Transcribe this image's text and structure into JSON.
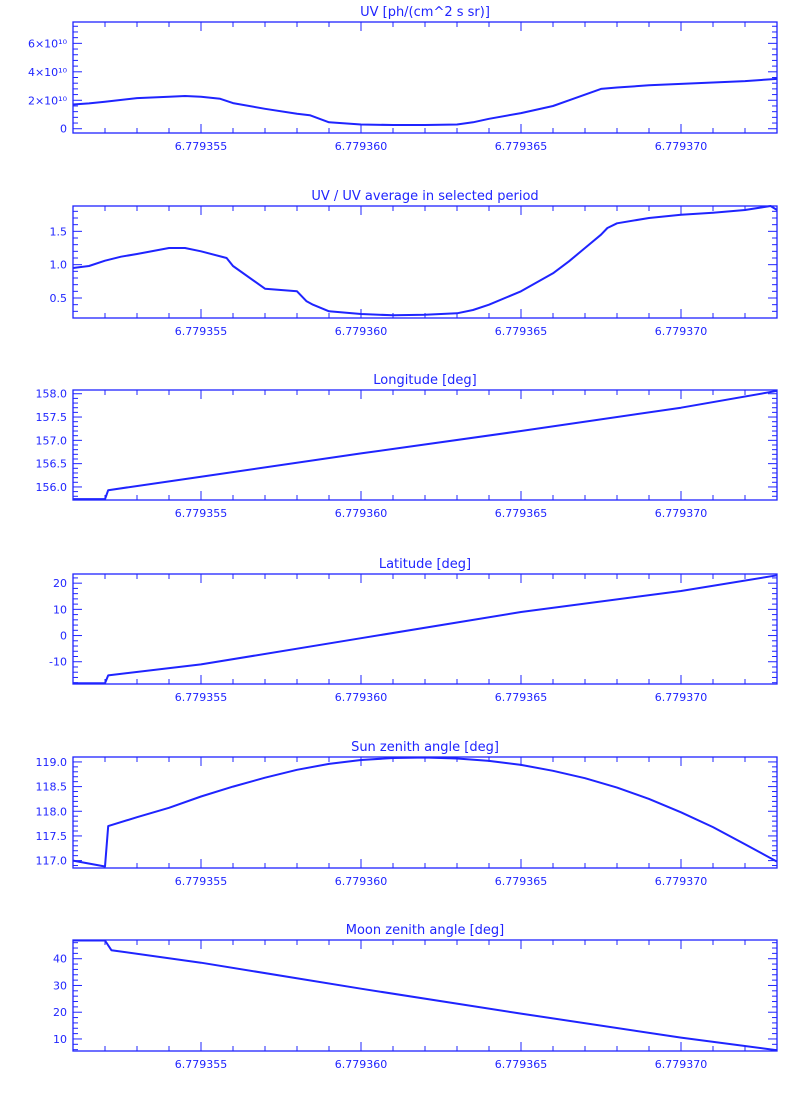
{
  "color": "#1f24ff",
  "chart_data": [
    {
      "type": "line",
      "title": "UV [ph/(cm^2 s sr)]",
      "xlim": [
        6.779351,
        6.779373
      ],
      "xticks": [
        6.779355,
        6.77936,
        6.779365,
        6.77937
      ],
      "xtick_labels": [
        "6.779355",
        "6.779360",
        "6.779365",
        "6.779370"
      ],
      "ylim": [
        -3000000000,
        75000000000
      ],
      "yticks": [
        0,
        20000000000,
        40000000000,
        60000000000
      ],
      "ytick_labels": [
        "0",
        "2×10¹⁰",
        "4×10¹⁰",
        "6×10¹⁰"
      ],
      "x": [
        6.779351,
        6.7793515,
        6.779352,
        6.779353,
        6.779354,
        6.7793545,
        6.779355,
        6.7793556,
        6.779356,
        6.779357,
        6.779358,
        6.7793584,
        6.779359,
        6.77936,
        6.779361,
        6.779362,
        6.779363,
        6.7793635,
        6.779364,
        6.779365,
        6.779366,
        6.7793665,
        6.7793675,
        6.779368,
        6.779369,
        6.77937,
        6.779371,
        6.779372,
        6.779373
      ],
      "y": [
        17000000000,
        17800000000,
        19000000000,
        21500000000,
        22500000000,
        23000000000,
        22500000000,
        21000000000,
        18000000000,
        14000000000,
        10500000000,
        9500000000,
        4500000000,
        3000000000,
        2600000000,
        2600000000,
        3000000000,
        4500000000,
        7000000000,
        11000000000,
        16000000000,
        20000000000,
        28000000000,
        29000000000,
        30500000000,
        31500000000,
        32500000000,
        33500000000,
        35000000000
      ]
    },
    {
      "type": "line",
      "title": "UV / UV average in selected period",
      "xlim": [
        6.779351,
        6.779373
      ],
      "xticks": [
        6.779355,
        6.77936,
        6.779365,
        6.77937
      ],
      "xtick_labels": [
        "6.779355",
        "6.779360",
        "6.779365",
        "6.779370"
      ],
      "ylim": [
        0.2,
        1.88
      ],
      "yticks": [
        0.5,
        1.0,
        1.5
      ],
      "ytick_labels": [
        "0.5",
        "1.0",
        "1.5"
      ],
      "x": [
        6.779351,
        6.7793515,
        6.779352,
        6.7793525,
        6.779353,
        6.779354,
        6.7793545,
        6.779355,
        6.7793558,
        6.779356,
        6.779357,
        6.779358,
        6.7793583,
        6.7793585,
        6.779359,
        6.77936,
        6.779361,
        6.779362,
        6.779363,
        6.7793635,
        6.779364,
        6.779365,
        6.779366,
        6.7793665,
        6.779367,
        6.7793675,
        6.7793677,
        6.779368,
        6.779369,
        6.77937,
        6.779371,
        6.779372,
        6.7793728,
        6.779373
      ],
      "y": [
        0.95,
        0.98,
        1.06,
        1.12,
        1.16,
        1.25,
        1.25,
        1.2,
        1.1,
        0.98,
        0.64,
        0.6,
        0.45,
        0.4,
        0.3,
        0.26,
        0.24,
        0.25,
        0.27,
        0.32,
        0.4,
        0.6,
        0.87,
        1.05,
        1.25,
        1.45,
        1.55,
        1.62,
        1.7,
        1.75,
        1.78,
        1.82,
        1.88,
        1.82
      ]
    },
    {
      "type": "line",
      "title": "Longitude [deg]",
      "xlim": [
        6.779351,
        6.779373
      ],
      "xticks": [
        6.779355,
        6.77936,
        6.779365,
        6.77937
      ],
      "xtick_labels": [
        "6.779355",
        "6.779360",
        "6.779365",
        "6.779370"
      ],
      "ylim": [
        155.72,
        158.08
      ],
      "yticks": [
        156.0,
        156.5,
        157.0,
        157.5,
        158.0
      ],
      "ytick_labels": [
        "156.0",
        "156.5",
        "157.0",
        "157.5",
        "158.0"
      ],
      "x": [
        6.779351,
        6.779352,
        6.7793521,
        6.779355,
        6.77936,
        6.779365,
        6.77937,
        6.779373
      ],
      "y": [
        155.74,
        155.74,
        155.93,
        156.22,
        156.72,
        157.2,
        157.7,
        158.06
      ]
    },
    {
      "type": "line",
      "title": "Latitude [deg]",
      "xlim": [
        6.779351,
        6.779373
      ],
      "xticks": [
        6.779355,
        6.77936,
        6.779365,
        6.77937
      ],
      "xtick_labels": [
        "6.779355",
        "6.779360",
        "6.779365",
        "6.779370"
      ],
      "ylim": [
        -18.5,
        23.5
      ],
      "yticks": [
        -10,
        0,
        10,
        20
      ],
      "ytick_labels": [
        "-10",
        "0",
        "10",
        "20"
      ],
      "x": [
        6.779351,
        6.779352,
        6.7793521,
        6.779355,
        6.77936,
        6.779365,
        6.77937,
        6.779373
      ],
      "y": [
        -18.2,
        -18.2,
        -15.2,
        -11,
        -1,
        9,
        17,
        23
      ]
    },
    {
      "type": "line",
      "title": "Sun zenith angle [deg]",
      "xlim": [
        6.779351,
        6.779373
      ],
      "xticks": [
        6.779355,
        6.77936,
        6.779365,
        6.77937
      ],
      "xtick_labels": [
        "6.779355",
        "6.779360",
        "6.779365",
        "6.779370"
      ],
      "ylim": [
        116.85,
        119.1
      ],
      "yticks": [
        117.0,
        117.5,
        118.0,
        118.5,
        119.0
      ],
      "ytick_labels": [
        "117.0",
        "117.5",
        "118.0",
        "118.5",
        "119.0"
      ],
      "x": [
        6.779351,
        6.779352,
        6.7793521,
        6.779353,
        6.779354,
        6.779355,
        6.779356,
        6.779357,
        6.779358,
        6.779359,
        6.77936,
        6.779361,
        6.779362,
        6.779363,
        6.779364,
        6.779365,
        6.779366,
        6.779367,
        6.779368,
        6.779369,
        6.77937,
        6.779371,
        6.779372,
        6.779373
      ],
      "y": [
        117.0,
        116.88,
        117.7,
        117.88,
        118.07,
        118.3,
        118.5,
        118.68,
        118.84,
        118.96,
        119.04,
        119.08,
        119.09,
        119.07,
        119.02,
        118.94,
        118.82,
        118.67,
        118.48,
        118.25,
        117.98,
        117.68,
        117.33,
        116.98
      ]
    },
    {
      "type": "line",
      "title": "Moon zenith angle [deg]",
      "xlim": [
        6.779351,
        6.779373
      ],
      "xticks": [
        6.779355,
        6.77936,
        6.779365,
        6.77937
      ],
      "xtick_labels": [
        "6.779355",
        "6.779360",
        "6.779365",
        "6.779370"
      ],
      "ylim": [
        5.5,
        47
      ],
      "yticks": [
        10,
        20,
        30,
        40
      ],
      "ytick_labels": [
        "10",
        "20",
        "30",
        "40"
      ],
      "x": [
        6.779351,
        6.779352,
        6.7793522,
        6.779355,
        6.77936,
        6.779365,
        6.77937,
        6.779373
      ],
      "y": [
        46.8,
        46.8,
        43.2,
        38.5,
        28.8,
        19.5,
        10.5,
        5.8
      ]
    }
  ]
}
